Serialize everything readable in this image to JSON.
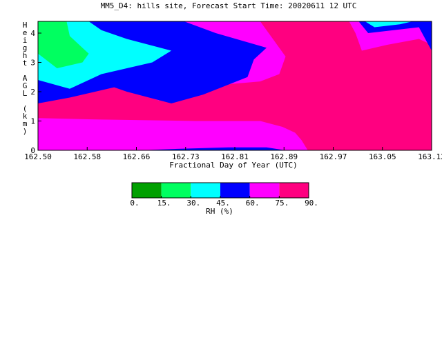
{
  "chart_data": {
    "type": "heatmap",
    "title": "MM5_D4: hills site,  Forecast Start Time: 20020611 12 UTC",
    "xlabel": "Fractional Day of Year (UTC)",
    "ylabel": "Height AGL (km)",
    "xlim": [
      162.5,
      163.12
    ],
    "ylim": [
      0,
      4.4
    ],
    "x_ticks": [
      "162.50",
      "162.58",
      "162.66",
      "162.73",
      "162.81",
      "162.89",
      "162.97",
      "163.05",
      "163.12"
    ],
    "y_ticks": [
      "0",
      "1",
      "2",
      "3",
      "4"
    ],
    "levels": [
      0,
      15,
      30,
      45,
      60,
      75,
      90
    ],
    "level_labels": [
      "0.",
      "15.",
      "30.",
      "45.",
      "60.",
      "75.",
      "90."
    ],
    "level_colors": [
      "#00a000",
      "#00ff60",
      "#00ffff",
      "#0000ff",
      "#ff00ff",
      "#ff0080"
    ],
    "colorbar_label": "RH (%)",
    "regions": [
      {
        "level": 75,
        "points": [
          [
            162.5,
            0
          ],
          [
            163.12,
            0
          ],
          [
            163.12,
            4.4
          ],
          [
            162.5,
            4.4
          ]
        ]
      },
      {
        "level": 60,
        "points": [
          [
            162.5,
            1.1
          ],
          [
            162.6,
            1.05
          ],
          [
            162.75,
            1.0
          ],
          [
            162.85,
            1.0
          ],
          [
            162.885,
            0.8
          ],
          [
            162.905,
            0.6
          ],
          [
            162.915,
            0.35
          ],
          [
            162.925,
            0
          ],
          [
            162.5,
            0
          ],
          [
            162.5,
            1.1
          ]
        ]
      },
      {
        "level": 45,
        "points": [
          [
            162.66,
            0
          ],
          [
            162.72,
            0.05
          ],
          [
            162.8,
            0.1
          ],
          [
            162.86,
            0.1
          ],
          [
            162.89,
            0
          ],
          [
            162.66,
            0
          ]
        ]
      },
      {
        "level": 60,
        "points": [
          [
            162.5,
            1.95
          ],
          [
            162.56,
            2.0
          ],
          [
            162.63,
            2.2
          ],
          [
            162.69,
            1.7
          ],
          [
            162.77,
            2.2
          ],
          [
            162.85,
            2.35
          ],
          [
            162.88,
            2.6
          ],
          [
            162.89,
            3.2
          ],
          [
            162.85,
            4.4
          ],
          [
            162.5,
            4.4
          ]
        ]
      },
      {
        "level": 45,
        "points": [
          [
            162.5,
            1.6
          ],
          [
            162.55,
            1.8
          ],
          [
            162.62,
            2.15
          ],
          [
            162.64,
            2.0
          ],
          [
            162.71,
            1.6
          ],
          [
            162.76,
            1.9
          ],
          [
            162.83,
            2.5
          ],
          [
            162.84,
            3.1
          ],
          [
            162.86,
            3.5
          ],
          [
            162.78,
            4.0
          ],
          [
            162.73,
            4.4
          ],
          [
            162.5,
            4.4
          ]
        ]
      },
      {
        "level": 30,
        "points": [
          [
            162.5,
            2.4
          ],
          [
            162.55,
            2.1
          ],
          [
            162.6,
            2.6
          ],
          [
            162.68,
            3.0
          ],
          [
            162.71,
            3.4
          ],
          [
            162.64,
            3.8
          ],
          [
            162.6,
            4.1
          ],
          [
            162.58,
            4.4
          ],
          [
            162.5,
            4.4
          ]
        ]
      },
      {
        "level": 15,
        "points": [
          [
            162.5,
            3.3
          ],
          [
            162.53,
            2.8
          ],
          [
            162.57,
            3.0
          ],
          [
            162.58,
            3.3
          ],
          [
            162.55,
            3.9
          ],
          [
            162.545,
            4.4
          ],
          [
            162.5,
            4.4
          ]
        ]
      },
      {
        "level": 60,
        "points": [
          [
            162.99,
            4.4
          ],
          [
            163.0,
            4.0
          ],
          [
            163.01,
            3.4
          ],
          [
            163.05,
            3.6
          ],
          [
            163.1,
            3.8
          ],
          [
            163.12,
            3.6
          ],
          [
            163.12,
            4.4
          ]
        ]
      },
      {
        "level": 45,
        "points": [
          [
            163.005,
            4.4
          ],
          [
            163.02,
            4.0
          ],
          [
            163.06,
            4.1
          ],
          [
            163.1,
            4.2
          ],
          [
            163.12,
            3.4
          ],
          [
            163.12,
            4.4
          ]
        ]
      },
      {
        "level": 30,
        "points": [
          [
            163.015,
            4.4
          ],
          [
            163.03,
            4.2
          ],
          [
            163.07,
            4.3
          ],
          [
            163.09,
            4.4
          ]
        ]
      }
    ]
  }
}
